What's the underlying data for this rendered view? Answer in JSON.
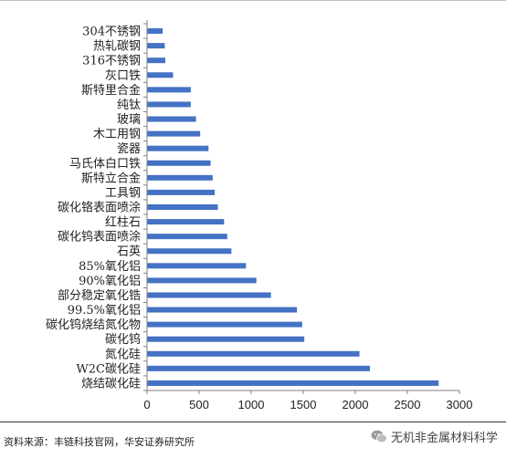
{
  "colors": {
    "bar": "#4472c4",
    "axis": "#808080"
  },
  "chart_data": {
    "type": "bar",
    "orientation": "horizontal",
    "categories": [
      "304不锈钢",
      "热轧碳钢",
      "316不锈钢",
      "灰口铁",
      "斯特里合金",
      "纯钛",
      "玻璃",
      "木工用钢",
      "瓷器",
      "马氏体白口铁",
      "斯特立合金",
      "工具钢",
      "碳化铬表面喷涂",
      "红柱石",
      "碳化钨表面喷涂",
      "石英",
      "85%氧化铝",
      "90%氧化铝",
      "部分稳定氧化锆",
      "99.5%氧化铝",
      "碳化钨烧结氮化物",
      "碳化钨",
      "氮化硅",
      "W2C碳化硅",
      "烧结碳化硅"
    ],
    "values": [
      150,
      170,
      175,
      250,
      420,
      420,
      470,
      510,
      590,
      610,
      630,
      650,
      680,
      740,
      770,
      810,
      950,
      1050,
      1190,
      1440,
      1490,
      1510,
      2040,
      2140,
      2800
    ],
    "xlim": [
      0,
      3000
    ],
    "xticks": [
      "0",
      "500",
      "1000",
      "1500",
      "2000",
      "2500",
      "3000"
    ],
    "grid": false,
    "legend": false
  },
  "source_text": "资料来源：丰链科技官网，华安证券研究所",
  "watermark_text": "无机非金属材料科学"
}
